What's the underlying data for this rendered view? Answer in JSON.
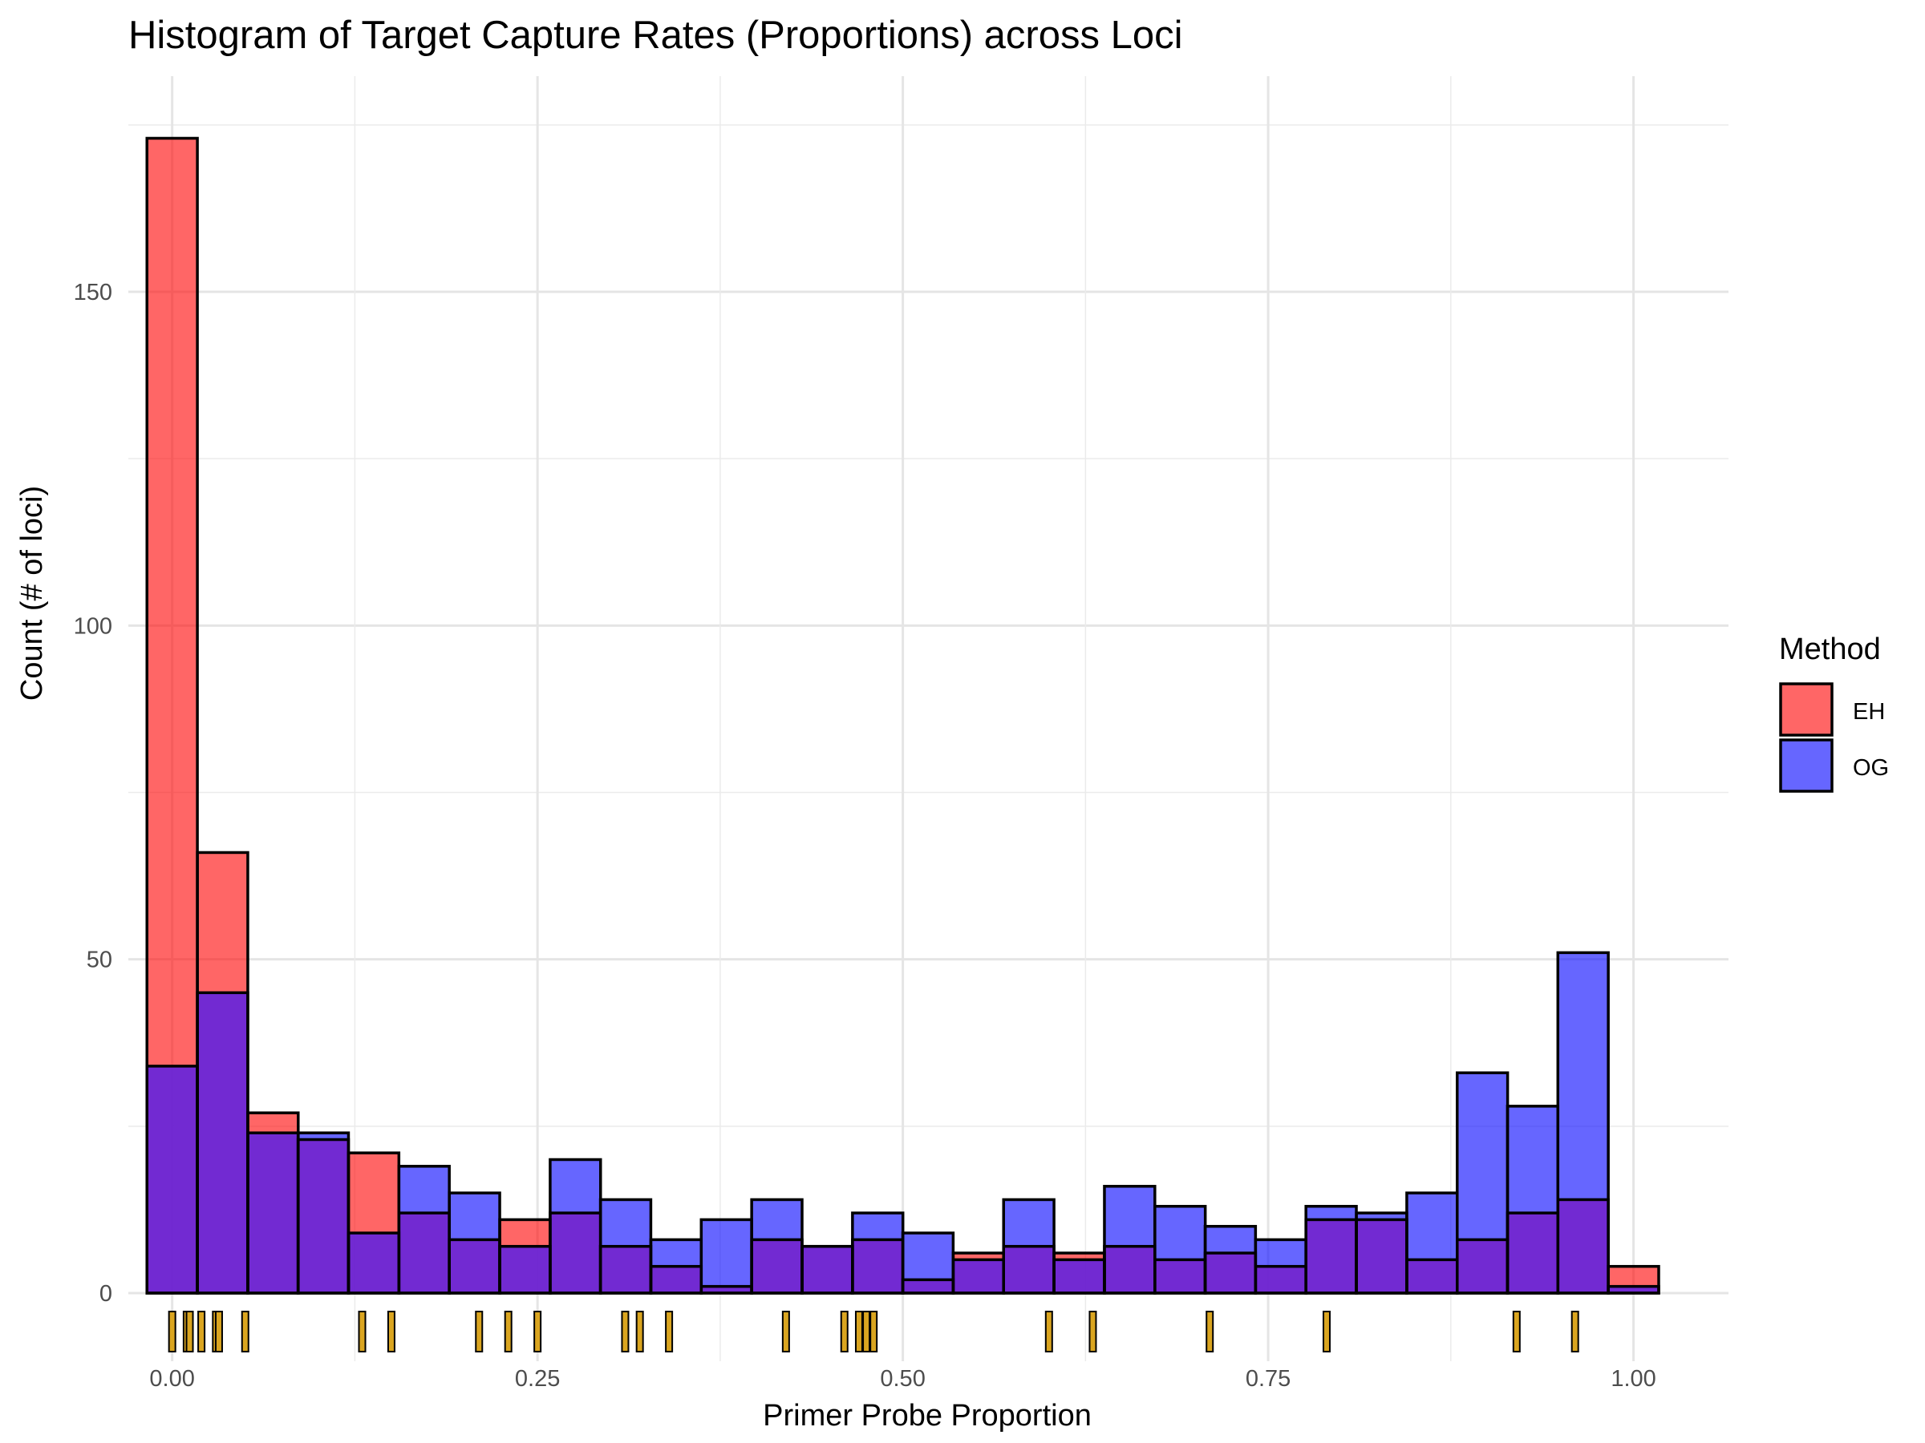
{
  "chart_data": {
    "type": "bar",
    "title": "Histogram of Target Capture Rates (Proportions) across Loci",
    "xlabel": "Primer Probe Proportion",
    "ylabel": "Count (# of loci)",
    "xlim": [
      -0.03,
      1.065
    ],
    "ylim": [
      0,
      174
    ],
    "x_ticks": [
      0.0,
      0.25,
      0.5,
      0.75,
      1.0
    ],
    "x_tick_labels": [
      "0.00",
      "0.25",
      "0.50",
      "0.75",
      "1.00"
    ],
    "y_ticks": [
      0,
      50,
      100,
      150
    ],
    "y_tick_labels": [
      "0",
      "50",
      "100",
      "150"
    ],
    "grid": true,
    "bin_width": 0.0345,
    "bin_centers": [
      0.0,
      0.0345,
      0.069,
      0.1034,
      0.1379,
      0.1724,
      0.2069,
      0.2414,
      0.2759,
      0.3103,
      0.3448,
      0.3793,
      0.4138,
      0.4483,
      0.4828,
      0.5172,
      0.5517,
      0.5862,
      0.6207,
      0.6552,
      0.6897,
      0.7241,
      0.7586,
      0.7931,
      0.8276,
      0.8621,
      0.8966,
      0.931,
      0.9655,
      1.0
    ],
    "series": [
      {
        "name": "EH",
        "color": "#ff0000",
        "values": [
          173,
          66,
          27,
          23,
          21,
          12,
          8,
          11,
          12,
          7,
          4,
          1,
          8,
          7,
          8,
          2,
          6,
          7,
          6,
          7,
          5,
          6,
          4,
          11,
          11,
          5,
          8,
          12,
          14,
          4
        ]
      },
      {
        "name": "OG",
        "color": "#0000ff",
        "values": [
          34,
          45,
          24,
          24,
          9,
          19,
          15,
          7,
          20,
          14,
          8,
          11,
          14,
          7,
          12,
          9,
          5,
          14,
          5,
          16,
          13,
          10,
          8,
          13,
          12,
          15,
          33,
          28,
          51,
          1
        ]
      }
    ],
    "overlap_color": "#6a1fd0",
    "rug_values": [
      0.0,
      0.01,
      0.012,
      0.02,
      0.03,
      0.032,
      0.05,
      0.13,
      0.15,
      0.21,
      0.23,
      0.25,
      0.31,
      0.32,
      0.34,
      0.42,
      0.46,
      0.47,
      0.475,
      0.48,
      0.6,
      0.63,
      0.71,
      0.79,
      0.92,
      0.96
    ],
    "rug_color": "#daa520",
    "legend": {
      "title": "Method",
      "placement": "right",
      "entries": [
        "EH",
        "OG"
      ]
    }
  }
}
